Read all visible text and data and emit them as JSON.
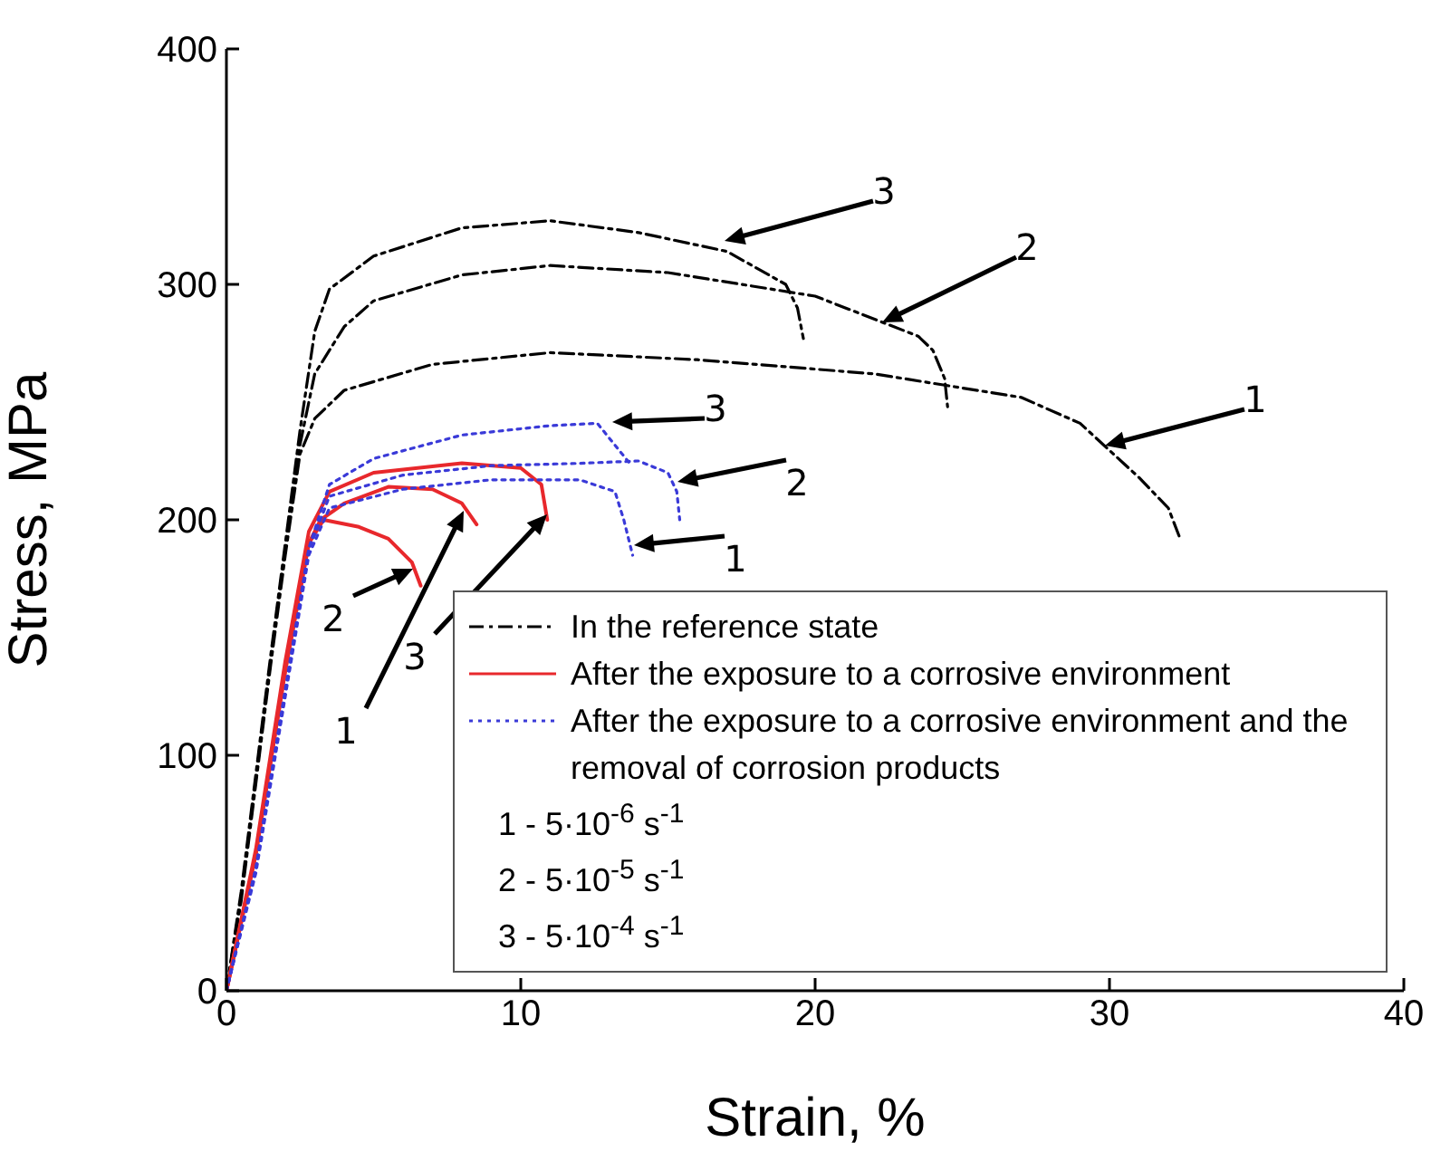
{
  "chart_data": {
    "type": "line",
    "xlabel": "Strain, %",
    "ylabel": "Stress, MPa",
    "xlim": [
      0,
      40
    ],
    "xticks": [
      0,
      10,
      20,
      30,
      40
    ],
    "ylim": [
      0,
      400
    ],
    "yticks": [
      0,
      100,
      200,
      300,
      400
    ],
    "grid": false,
    "legend": "bottom right",
    "marker": "none",
    "series": [
      {
        "name": "In the reference state",
        "color": "#000000",
        "line_style": "dashdot",
        "x": [
          0,
          0.5,
          1,
          1.5,
          2,
          2.5,
          3,
          4,
          7,
          11,
          16,
          22,
          27,
          29,
          31,
          32,
          32.4
        ],
        "values": [
          0,
          38,
          88,
          138,
          185,
          228,
          243,
          255,
          266,
          271,
          268,
          262,
          252,
          241,
          218,
          205,
          192
        ]
      },
      {
        "color": "#000000",
        "line_style": "dashdot",
        "x": [
          0,
          0.5,
          1,
          1.5,
          2,
          2.5,
          3,
          4,
          5,
          8,
          11,
          15,
          20,
          23.5,
          24,
          24.4,
          24.5
        ],
        "values": [
          0,
          40,
          90,
          140,
          188,
          232,
          262,
          282,
          293,
          304,
          308,
          305,
          295,
          278,
          272,
          260,
          248
        ]
      },
      {
        "color": "#000000",
        "line_style": "dashdot",
        "x": [
          0,
          0.5,
          1,
          1.5,
          2,
          2.5,
          3,
          3.5,
          5,
          8,
          11,
          14,
          17,
          19,
          19.4,
          19.6
        ],
        "values": [
          0,
          42,
          92,
          142,
          190,
          238,
          280,
          298,
          312,
          324,
          327,
          322,
          314,
          300,
          290,
          277
        ]
      },
      {
        "name": "After the exposure to a corrosive environment",
        "color": "#e8282c",
        "line_style": "solid",
        "x": [
          0,
          1,
          2,
          2.8,
          3.2,
          4,
          5.5,
          7,
          8,
          8.5
        ],
        "values": [
          0,
          58,
          136,
          190,
          200,
          207,
          214,
          213,
          207,
          198
        ]
      },
      {
        "color": "#e8282c",
        "line_style": "solid",
        "x": [
          0,
          1,
          2,
          2.8,
          3.3,
          4.5,
          5.5,
          6.3,
          6.6
        ],
        "values": [
          0,
          58,
          136,
          190,
          200,
          197,
          192,
          182,
          172
        ]
      },
      {
        "color": "#e8282c",
        "line_style": "solid",
        "x": [
          0,
          1,
          2,
          2.8,
          3.5,
          5,
          8,
          10,
          10.7,
          10.9
        ],
        "values": [
          0,
          60,
          140,
          195,
          212,
          220,
          224,
          222,
          215,
          200
        ]
      },
      {
        "name": "After the exposure to a corrosive environment and the removal of corrosion products",
        "color": "#3a3ad8",
        "line_style": "dotted",
        "x": [
          0,
          1,
          2,
          2.8,
          3.5,
          6,
          9,
          12,
          13.2,
          13.5,
          13.8
        ],
        "values": [
          0,
          50,
          125,
          185,
          205,
          213,
          217,
          217,
          212,
          200,
          185
        ]
      },
      {
        "color": "#3a3ad8",
        "line_style": "dotted",
        "x": [
          0,
          1,
          2,
          2.8,
          3.5,
          6,
          9,
          12,
          14,
          15,
          15.3,
          15.4
        ],
        "values": [
          0,
          52,
          127,
          187,
          210,
          219,
          223,
          224,
          225,
          220,
          212,
          200
        ]
      },
      {
        "color": "#3a3ad8",
        "line_style": "dotted",
        "x": [
          0,
          1,
          2,
          2.8,
          3.5,
          5,
          8,
          11,
          12.6,
          13.7
        ],
        "values": [
          0,
          52,
          128,
          188,
          215,
          226,
          236,
          240,
          241,
          224
        ]
      }
    ],
    "annotations": [
      "1 - 5·10$^{-6}$ s$^{-1}$",
      "2 - 5·10$^{-5}$ s$^{-1}$",
      "3 - 5·10$^{-4}$ s$^{-1}$",
      "3",
      "2",
      "3",
      "1",
      "2",
      "1",
      "2",
      "3",
      "1"
    ]
  }
}
